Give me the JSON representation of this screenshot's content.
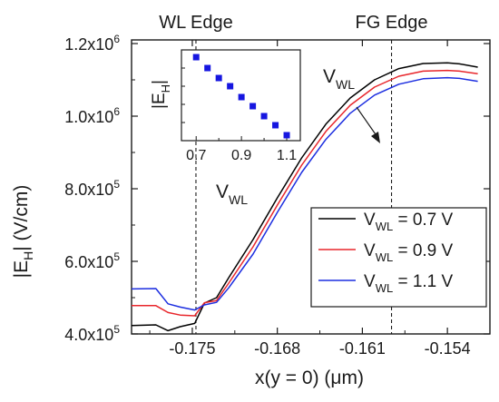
{
  "chart_data": {
    "type": "line",
    "xlabel_main": "x(y = 0) (",
    "xlabel_mu": "μ",
    "xlabel_tail": "m)",
    "ylabel_main": "|E",
    "ylabel_sub": "H",
    "ylabel_tail": "| (V/cm)",
    "xlim": [
      -0.18,
      -0.1505
    ],
    "ylim": [
      400000,
      1210000
    ],
    "xticks": [
      {
        "v": -0.175,
        "label": "-0.175"
      },
      {
        "v": -0.168,
        "label": "-0.168"
      },
      {
        "v": -0.161,
        "label": "-0.161"
      },
      {
        "v": -0.154,
        "label": "-0.154"
      }
    ],
    "yticks": [
      {
        "v": 400000,
        "mant": "4.0x10",
        "exp": "5"
      },
      {
        "v": 600000,
        "mant": "6.0x10",
        "exp": "5"
      },
      {
        "v": 800000,
        "mant": "8.0x10",
        "exp": "5"
      },
      {
        "v": 1000000,
        "mant": "1.0x10",
        "exp": "6"
      },
      {
        "v": 1200000,
        "mant": "1.2x10",
        "exp": "6"
      }
    ],
    "edges": [
      {
        "label": "WL Edge",
        "x": -0.1747
      },
      {
        "label": "FG Edge",
        "x": -0.1586
      }
    ],
    "series": [
      {
        "name": "V_WL = 0.7 V",
        "color": "#000000",
        "x": [
          -0.18,
          -0.178,
          -0.177,
          -0.176,
          -0.1748,
          -0.174,
          -0.173,
          -0.172,
          -0.17,
          -0.168,
          -0.166,
          -0.164,
          -0.162,
          -0.16,
          -0.158,
          -0.156,
          -0.154,
          -0.153,
          -0.1515
        ],
        "y": [
          423000,
          425000,
          409000,
          420000,
          429000,
          485000,
          500000,
          555000,
          660000,
          775000,
          885000,
          978000,
          1050000,
          1100000,
          1131000,
          1145000,
          1147000,
          1144000,
          1135000
        ]
      },
      {
        "name": "V_WL = 0.9 V",
        "color": "#e8262b",
        "x": [
          -0.18,
          -0.178,
          -0.177,
          -0.176,
          -0.1748,
          -0.174,
          -0.173,
          -0.172,
          -0.17,
          -0.168,
          -0.166,
          -0.164,
          -0.162,
          -0.16,
          -0.158,
          -0.156,
          -0.154,
          -0.153,
          -0.1515
        ],
        "y": [
          478000,
          478000,
          459000,
          452000,
          450000,
          486000,
          492000,
          540000,
          640000,
          755000,
          865000,
          958000,
          1030000,
          1080000,
          1110000,
          1124000,
          1126000,
          1124000,
          1117000
        ]
      },
      {
        "name": "V_WL = 1.1 V",
        "color": "#1c2ee0",
        "x": [
          -0.18,
          -0.178,
          -0.177,
          -0.176,
          -0.1748,
          -0.174,
          -0.173,
          -0.172,
          -0.17,
          -0.168,
          -0.166,
          -0.164,
          -0.162,
          -0.16,
          -0.158,
          -0.156,
          -0.154,
          -0.153,
          -0.1515
        ],
        "y": [
          524000,
          525000,
          483000,
          474000,
          466000,
          480000,
          487000,
          527000,
          620000,
          735000,
          845000,
          936000,
          1008000,
          1058000,
          1088000,
          1103000,
          1106000,
          1104000,
          1096000
        ]
      }
    ],
    "legend": {
      "placement": "bottom-right",
      "entries": [
        {
          "pre": "V",
          "sub": "WL",
          "post": " = 0.7 V",
          "color": "#000000"
        },
        {
          "pre": "V",
          "sub": "WL",
          "post": " = 0.9 V",
          "color": "#e8262b"
        },
        {
          "pre": "V",
          "sub": "WL",
          "post": " = 1.1 V",
          "color": "#1c2ee0"
        }
      ]
    },
    "annotations": {
      "vwl_main": "V",
      "vwl_sub": "WL",
      "arrow_label_main": "V",
      "arrow_label_sub": "WL"
    },
    "inset": {
      "type": "scatter",
      "marker_color": "#1616e0",
      "xlim": [
        0.635,
        1.16
      ],
      "xticks": [
        {
          "v": 0.7,
          "label": "0.7"
        },
        {
          "v": 0.9,
          "label": "0.9"
        },
        {
          "v": 1.1,
          "label": "1.1"
        }
      ],
      "ylabel_main": "|E",
      "ylabel_sub": "H",
      "ylabel_tail": "|",
      "x": [
        0.7,
        0.75,
        0.8,
        0.85,
        0.9,
        0.95,
        1.0,
        1.05,
        1.1
      ],
      "y": [
        0.92,
        0.8,
        0.69,
        0.6,
        0.48,
        0.38,
        0.27,
        0.17,
        0.06
      ]
    }
  }
}
